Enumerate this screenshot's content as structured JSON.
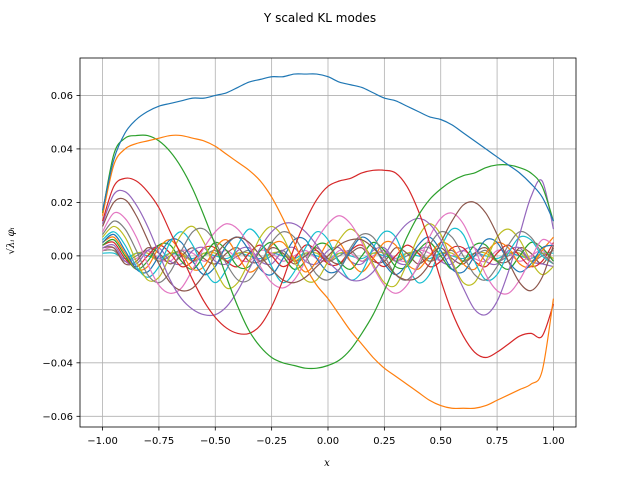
{
  "chart_data": {
    "type": "line",
    "title": "Y scaled KL modes",
    "xlabel": "x",
    "ylabel": "√λᵢ φᵢ",
    "xlim": [
      -1.1,
      1.1
    ],
    "ylim": [
      -0.064,
      0.074
    ],
    "xticks": [
      -1.0,
      -0.75,
      -0.5,
      -0.25,
      0.0,
      0.25,
      0.5,
      0.75,
      1.0
    ],
    "xtick_labels": [
      "−1.00",
      "−0.75",
      "−0.50",
      "−0.25",
      "0.00",
      "0.25",
      "0.50",
      "0.75",
      "1.00"
    ],
    "yticks": [
      -0.06,
      -0.04,
      -0.02,
      0.0,
      0.02,
      0.04,
      0.06
    ],
    "ytick_labels": [
      "−0.06",
      "−0.04",
      "−0.02",
      "0.00",
      "0.02",
      "0.04",
      "0.06"
    ],
    "grid": true,
    "legend": "none",
    "x": [
      -1.0,
      -0.95,
      -0.9,
      -0.85,
      -0.8,
      -0.75,
      -0.7,
      -0.65,
      -0.6,
      -0.55,
      -0.5,
      -0.45,
      -0.4,
      -0.35,
      -0.3,
      -0.25,
      -0.2,
      -0.15,
      -0.1,
      -0.05,
      0.0,
      0.05,
      0.1,
      0.15,
      0.2,
      0.25,
      0.3,
      0.35,
      0.4,
      0.45,
      0.5,
      0.55,
      0.6,
      0.65,
      0.7,
      0.75,
      0.8,
      0.85,
      0.9,
      0.95,
      1.0
    ],
    "series": [
      {
        "color": "#1f77b4",
        "values": [
          0.017,
          0.036,
          0.046,
          0.051,
          0.054,
          0.056,
          0.057,
          0.058,
          0.059,
          0.059,
          0.06,
          0.061,
          0.063,
          0.065,
          0.066,
          0.067,
          0.067,
          0.068,
          0.068,
          0.068,
          0.067,
          0.065,
          0.064,
          0.063,
          0.061,
          0.059,
          0.058,
          0.056,
          0.054,
          0.052,
          0.051,
          0.049,
          0.046,
          0.043,
          0.04,
          0.037,
          0.034,
          0.031,
          0.027,
          0.022,
          0.013
        ]
      },
      {
        "color": "#ff7f0e",
        "values": [
          0.015,
          0.034,
          0.04,
          0.042,
          0.043,
          0.044,
          0.045,
          0.045,
          0.044,
          0.043,
          0.041,
          0.038,
          0.035,
          0.032,
          0.028,
          0.022,
          0.014,
          0.005,
          -0.004,
          -0.011,
          -0.016,
          -0.022,
          -0.028,
          -0.033,
          -0.038,
          -0.042,
          -0.045,
          -0.048,
          -0.051,
          -0.054,
          -0.056,
          -0.057,
          -0.057,
          -0.057,
          -0.056,
          -0.054,
          -0.052,
          -0.05,
          -0.048,
          -0.043,
          -0.016
        ]
      },
      {
        "color": "#2ca02c",
        "values": [
          0.016,
          0.038,
          0.044,
          0.045,
          0.045,
          0.043,
          0.039,
          0.033,
          0.025,
          0.015,
          0.004,
          -0.008,
          -0.019,
          -0.028,
          -0.034,
          -0.038,
          -0.04,
          -0.041,
          -0.042,
          -0.042,
          -0.041,
          -0.039,
          -0.035,
          -0.029,
          -0.022,
          -0.013,
          -0.003,
          0.007,
          0.015,
          0.021,
          0.025,
          0.028,
          0.03,
          0.031,
          0.033,
          0.034,
          0.034,
          0.033,
          0.031,
          0.026,
          0.013
        ]
      },
      {
        "color": "#d62728",
        "values": [
          0.013,
          0.026,
          0.029,
          0.028,
          0.024,
          0.018,
          0.009,
          0.0,
          -0.009,
          -0.017,
          -0.023,
          -0.027,
          -0.029,
          -0.029,
          -0.026,
          -0.019,
          -0.009,
          0.003,
          0.013,
          0.021,
          0.026,
          0.028,
          0.029,
          0.031,
          0.032,
          0.032,
          0.031,
          0.026,
          0.017,
          0.005,
          -0.009,
          -0.021,
          -0.03,
          -0.036,
          -0.038,
          -0.036,
          -0.033,
          -0.03,
          -0.029,
          -0.03,
          -0.018
        ]
      },
      {
        "color": "#9467bd",
        "values": [
          0.012,
          0.023,
          0.024,
          0.019,
          0.011,
          0.001,
          -0.009,
          -0.016,
          -0.02,
          -0.022,
          -0.022,
          -0.019,
          -0.013,
          -0.005,
          0.003,
          0.009,
          0.012,
          0.012,
          0.009,
          0.004,
          -0.002,
          -0.006,
          -0.009,
          -0.009,
          -0.006,
          0.0,
          0.007,
          0.012,
          0.014,
          0.012,
          0.006,
          -0.003,
          -0.012,
          -0.02,
          -0.022,
          -0.017,
          -0.006,
          0.008,
          0.022,
          0.028,
          0.01
        ]
      },
      {
        "color": "#8c564b",
        "values": [
          0.011,
          0.02,
          0.021,
          0.015,
          0.006,
          -0.003,
          -0.01,
          -0.013,
          -0.012,
          -0.007,
          0.0,
          0.005,
          0.007,
          0.005,
          0.0,
          -0.005,
          -0.009,
          -0.01,
          -0.008,
          -0.004,
          0.0,
          0.004,
          0.006,
          0.006,
          0.003,
          -0.002,
          -0.007,
          -0.009,
          -0.008,
          -0.003,
          0.005,
          0.013,
          0.019,
          0.02,
          0.016,
          0.008,
          -0.002,
          -0.01,
          -0.013,
          -0.008,
          0.004
        ]
      },
      {
        "color": "#e377c2",
        "values": [
          0.009,
          0.016,
          0.014,
          0.007,
          -0.003,
          -0.011,
          -0.014,
          -0.012,
          -0.005,
          0.003,
          0.009,
          0.012,
          0.01,
          0.004,
          -0.004,
          -0.01,
          -0.012,
          -0.009,
          -0.002,
          0.006,
          0.012,
          0.015,
          0.012,
          0.005,
          -0.004,
          -0.011,
          -0.014,
          -0.011,
          -0.003,
          0.007,
          0.014,
          0.016,
          0.012,
          0.003,
          -0.007,
          -0.013,
          -0.014,
          -0.009,
          -0.001,
          0.006,
          0.004
        ]
      },
      {
        "color": "#7f7f7f",
        "values": [
          0.008,
          0.013,
          0.01,
          0.002,
          -0.007,
          -0.01,
          -0.006,
          0.002,
          0.009,
          0.01,
          0.005,
          -0.003,
          -0.009,
          -0.009,
          -0.003,
          0.005,
          0.009,
          0.007,
          0.0,
          -0.007,
          -0.009,
          -0.005,
          0.003,
          0.008,
          0.007,
          0.0,
          -0.007,
          -0.009,
          -0.004,
          0.004,
          0.009,
          0.007,
          0.0,
          -0.007,
          -0.009,
          -0.004,
          0.004,
          0.009,
          0.007,
          0.001,
          -0.003
        ]
      },
      {
        "color": "#bcbd22",
        "values": [
          0.007,
          0.011,
          0.007,
          -0.002,
          -0.009,
          -0.008,
          0.0,
          0.008,
          0.011,
          0.005,
          -0.005,
          -0.012,
          -0.01,
          -0.002,
          0.007,
          0.011,
          0.007,
          -0.002,
          -0.009,
          -0.009,
          -0.002,
          0.006,
          0.01,
          0.006,
          -0.003,
          -0.01,
          -0.011,
          -0.003,
          0.007,
          0.012,
          0.008,
          -0.002,
          -0.01,
          -0.01,
          -0.002,
          0.007,
          0.01,
          0.006,
          -0.002,
          -0.007,
          -0.004
        ]
      },
      {
        "color": "#17becf",
        "values": [
          0.006,
          0.009,
          0.004,
          -0.004,
          -0.008,
          -0.004,
          0.005,
          0.009,
          0.004,
          -0.005,
          -0.01,
          -0.005,
          0.004,
          0.01,
          0.006,
          -0.004,
          -0.01,
          -0.006,
          0.003,
          0.009,
          0.006,
          -0.003,
          -0.009,
          -0.006,
          0.003,
          0.009,
          0.007,
          -0.003,
          -0.01,
          -0.007,
          0.003,
          0.01,
          0.008,
          -0.002,
          -0.009,
          -0.007,
          0.001,
          0.007,
          0.006,
          0.0,
          -0.003
        ]
      },
      {
        "color": "#1f77b4",
        "values": [
          0.005,
          0.008,
          0.002,
          -0.005,
          -0.006,
          0.0,
          0.006,
          0.005,
          -0.002,
          -0.007,
          -0.004,
          0.004,
          0.007,
          0.002,
          -0.005,
          -0.007,
          -0.001,
          0.006,
          0.006,
          -0.001,
          -0.006,
          -0.005,
          0.002,
          0.007,
          0.004,
          -0.003,
          -0.007,
          -0.003,
          0.004,
          0.007,
          0.002,
          -0.005,
          -0.006,
          0.0,
          0.006,
          0.005,
          -0.002,
          -0.006,
          -0.003,
          0.003,
          0.004
        ]
      },
      {
        "color": "#ff7f0e",
        "values": [
          0.005,
          0.007,
          0.001,
          -0.005,
          -0.004,
          0.003,
          0.006,
          0.001,
          -0.005,
          -0.004,
          0.003,
          0.006,
          0.0,
          -0.006,
          -0.003,
          0.004,
          0.005,
          -0.001,
          -0.006,
          -0.002,
          0.005,
          0.005,
          -0.002,
          -0.006,
          -0.001,
          0.005,
          0.004,
          -0.003,
          -0.005,
          0.0,
          0.005,
          0.003,
          -0.003,
          -0.005,
          0.001,
          0.005,
          0.003,
          -0.003,
          -0.004,
          0.002,
          0.007
        ]
      },
      {
        "color": "#2ca02c",
        "values": [
          0.004,
          0.006,
          0.0,
          -0.005,
          -0.002,
          0.004,
          0.004,
          -0.002,
          -0.005,
          0.0,
          0.005,
          0.002,
          -0.004,
          -0.004,
          0.002,
          0.005,
          0.0,
          -0.005,
          -0.002,
          0.004,
          0.004,
          -0.002,
          -0.005,
          0.0,
          0.005,
          0.002,
          -0.004,
          -0.004,
          0.002,
          0.005,
          0.0,
          -0.005,
          -0.002,
          0.004,
          0.004,
          -0.002,
          -0.005,
          0.0,
          0.005,
          0.003,
          -0.002
        ]
      },
      {
        "color": "#d62728",
        "values": [
          0.004,
          0.005,
          -0.001,
          -0.004,
          0.0,
          0.004,
          0.001,
          -0.004,
          -0.002,
          0.003,
          0.003,
          -0.002,
          -0.004,
          0.001,
          0.004,
          0.0,
          -0.004,
          -0.001,
          0.004,
          0.002,
          -0.003,
          -0.003,
          0.002,
          0.004,
          -0.001,
          -0.004,
          0.0,
          0.004,
          0.001,
          -0.004,
          -0.002,
          0.003,
          0.003,
          -0.002,
          -0.004,
          0.001,
          0.004,
          0.0,
          -0.004,
          -0.002,
          0.005
        ]
      },
      {
        "color": "#9467bd",
        "values": [
          0.003,
          0.004,
          -0.002,
          -0.003,
          0.002,
          0.003,
          -0.002,
          -0.003,
          0.002,
          0.003,
          -0.002,
          -0.003,
          0.002,
          0.003,
          -0.002,
          -0.003,
          0.002,
          0.003,
          -0.002,
          -0.003,
          0.002,
          0.003,
          -0.002,
          -0.003,
          0.002,
          0.003,
          -0.002,
          -0.003,
          0.002,
          0.003,
          -0.002,
          -0.003,
          0.002,
          0.003,
          -0.002,
          -0.003,
          0.002,
          0.003,
          -0.002,
          -0.003,
          -0.004
        ]
      },
      {
        "color": "#8c564b",
        "values": [
          0.003,
          0.003,
          -0.003,
          -0.002,
          0.003,
          0.001,
          -0.003,
          0.0,
          0.003,
          -0.001,
          -0.003,
          0.001,
          0.003,
          -0.002,
          -0.002,
          0.003,
          0.001,
          -0.003,
          0.0,
          0.003,
          -0.001,
          -0.003,
          0.001,
          0.003,
          -0.002,
          -0.002,
          0.003,
          0.001,
          -0.003,
          0.0,
          0.003,
          -0.001,
          -0.003,
          0.001,
          0.003,
          -0.002,
          -0.002,
          0.003,
          0.001,
          -0.003,
          0.003
        ]
      },
      {
        "color": "#e377c2",
        "values": [
          0.002,
          0.003,
          -0.002,
          -0.001,
          0.002,
          -0.001,
          -0.002,
          0.002,
          0.001,
          -0.002,
          0.0,
          0.002,
          -0.001,
          -0.002,
          0.002,
          0.001,
          -0.002,
          0.0,
          0.002,
          -0.001,
          -0.002,
          0.002,
          0.001,
          -0.002,
          0.0,
          0.002,
          -0.001,
          -0.002,
          0.002,
          0.001,
          -0.002,
          0.0,
          0.002,
          -0.001,
          -0.002,
          0.002,
          0.001,
          -0.002,
          0.0,
          0.002,
          -0.002
        ]
      },
      {
        "color": "#7f7f7f",
        "values": [
          0.002,
          0.002,
          -0.002,
          0.0,
          0.002,
          -0.002,
          0.0,
          0.002,
          -0.002,
          0.0,
          0.002,
          -0.002,
          0.0,
          0.002,
          -0.002,
          0.0,
          0.002,
          -0.002,
          0.0,
          0.002,
          -0.002,
          0.0,
          0.002,
          -0.002,
          0.0,
          0.002,
          -0.002,
          0.0,
          0.002,
          -0.002,
          0.0,
          0.002,
          -0.002,
          0.0,
          0.002,
          -0.002,
          0.0,
          0.002,
          -0.002,
          0.0,
          0.002
        ]
      },
      {
        "color": "#bcbd22",
        "values": [
          0.002,
          0.002,
          -0.002,
          0.001,
          0.001,
          -0.002,
          0.001,
          0.001,
          -0.002,
          0.001,
          0.001,
          -0.002,
          0.001,
          0.001,
          -0.002,
          0.001,
          0.001,
          -0.002,
          0.001,
          0.001,
          -0.002,
          0.001,
          0.001,
          -0.002,
          0.001,
          0.001,
          -0.002,
          0.001,
          0.001,
          -0.002,
          0.001,
          0.001,
          -0.002,
          0.001,
          0.001,
          -0.002,
          0.001,
          0.001,
          -0.002,
          0.001,
          -0.001
        ]
      },
      {
        "color": "#17becf",
        "values": [
          0.001,
          0.001,
          -0.001,
          0.001,
          0.0,
          -0.001,
          0.001,
          0.0,
          -0.001,
          0.001,
          0.0,
          -0.001,
          0.001,
          0.0,
          -0.001,
          0.001,
          0.0,
          -0.001,
          0.001,
          0.0,
          -0.001,
          0.001,
          0.0,
          -0.001,
          0.001,
          0.0,
          -0.001,
          0.001,
          0.0,
          -0.001,
          0.001,
          0.0,
          -0.001,
          0.001,
          0.0,
          -0.001,
          0.001,
          0.0,
          -0.001,
          0.001,
          0.001
        ]
      }
    ]
  }
}
